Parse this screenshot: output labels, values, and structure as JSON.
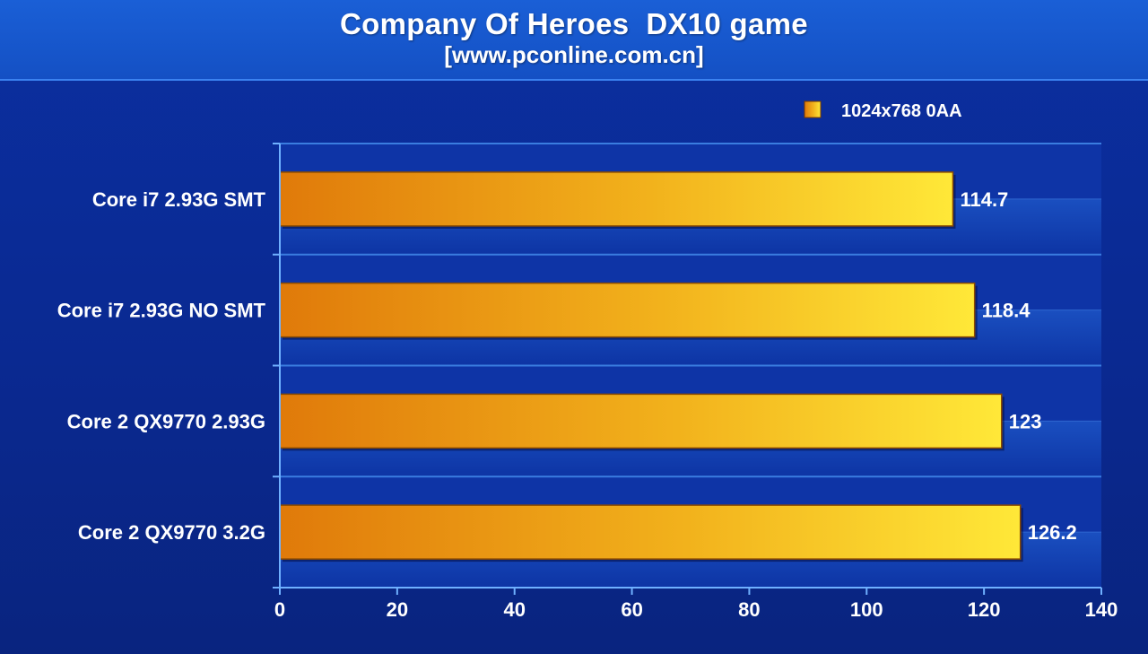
{
  "chart_data": {
    "type": "bar",
    "orientation": "horizontal",
    "title": "Company Of Heroes  DX10 game",
    "subtitle": "[www.pconline.com.cn]",
    "categories": [
      "Core i7 2.93G SMT",
      "Core i7 2.93G NO SMT",
      "Core 2 QX9770 2.93G",
      "Core 2 QX9770 3.2G"
    ],
    "series": [
      {
        "name": "1024x768 0AA",
        "values": [
          114.7,
          118.4,
          123,
          126.2
        ]
      }
    ],
    "value_labels": [
      "114.7",
      "118.4",
      "123",
      "126.2"
    ],
    "xlim": [
      0,
      140
    ],
    "xticks": [
      0,
      20,
      40,
      60,
      80,
      100,
      120,
      140
    ],
    "xlabel": "",
    "ylabel": "",
    "grid": true,
    "legend_position": "top-right",
    "colors": {
      "bar_start": "#e07a0a",
      "bar_end": "#ffe838",
      "background": "#0a2a92",
      "title_band": "#1655cc",
      "grid": "#3a7de0",
      "text": "#ffffff"
    }
  }
}
